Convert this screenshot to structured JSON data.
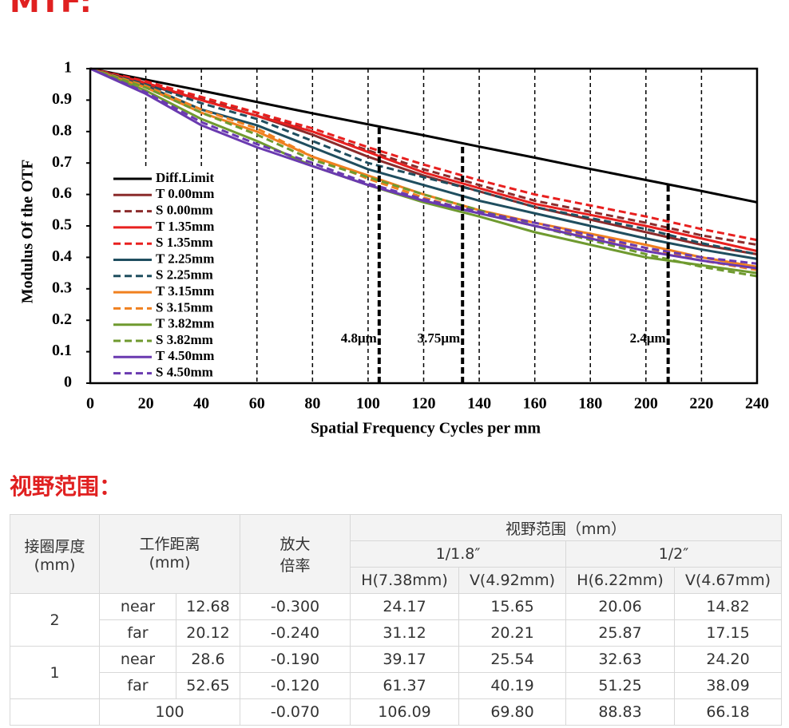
{
  "heading": "MTF:",
  "chart_data": {
    "type": "line",
    "x_label": "Spatial Frequency Cycles per mm",
    "y_label": "Modulus Of  the OTF",
    "x": [
      0,
      20,
      40,
      60,
      80,
      100,
      120,
      140,
      160,
      180,
      200,
      220,
      240
    ],
    "xlim": [
      0,
      240
    ],
    "ylim": [
      0,
      1
    ],
    "xticks": [
      0,
      20,
      40,
      60,
      80,
      100,
      120,
      140,
      160,
      180,
      200,
      220,
      240
    ],
    "yticks": [
      0,
      0.1,
      0.2,
      0.3,
      0.4,
      0.5,
      0.6,
      0.7,
      0.8,
      0.9,
      1
    ],
    "grid": "x",
    "legend": "left",
    "series": [
      {
        "name": "Diff.Limit",
        "color": "#000000",
        "dash": false,
        "values": [
          1,
          0.965,
          0.93,
          0.894,
          0.858,
          0.823,
          0.788,
          0.752,
          0.717,
          0.681,
          0.646,
          0.611,
          0.575
        ]
      },
      {
        "name": "T 0.00mm",
        "color": "#8b2b2b",
        "dash": false,
        "values": [
          1,
          0.95,
          0.9,
          0.85,
          0.79,
          0.72,
          0.66,
          0.61,
          0.56,
          0.52,
          0.48,
          0.44,
          0.41
        ]
      },
      {
        "name": "S 0.00mm",
        "color": "#8b2b2b",
        "dash": true,
        "values": [
          1,
          0.955,
          0.905,
          0.86,
          0.8,
          0.74,
          0.68,
          0.63,
          0.58,
          0.545,
          0.51,
          0.47,
          0.44
        ]
      },
      {
        "name": "T 1.35mm",
        "color": "#e8201f",
        "dash": false,
        "values": [
          1,
          0.955,
          0.9,
          0.85,
          0.8,
          0.735,
          0.67,
          0.62,
          0.57,
          0.535,
          0.5,
          0.46,
          0.42
        ]
      },
      {
        "name": "S 1.35mm",
        "color": "#e8201f",
        "dash": true,
        "values": [
          1,
          0.96,
          0.91,
          0.86,
          0.81,
          0.75,
          0.695,
          0.645,
          0.6,
          0.565,
          0.53,
          0.49,
          0.455
        ]
      },
      {
        "name": "T 2.25mm",
        "color": "#1f4e5f",
        "dash": false,
        "values": [
          1,
          0.945,
          0.87,
          0.82,
          0.75,
          0.68,
          0.63,
          0.58,
          0.54,
          0.5,
          0.46,
          0.425,
          0.395
        ]
      },
      {
        "name": "S 2.25mm",
        "color": "#1f4e5f",
        "dash": true,
        "values": [
          1,
          0.95,
          0.89,
          0.84,
          0.77,
          0.7,
          0.655,
          0.61,
          0.56,
          0.525,
          0.49,
          0.445,
          0.41
        ]
      },
      {
        "name": "T 3.15mm",
        "color": "#f0801f",
        "dash": false,
        "values": [
          1,
          0.94,
          0.86,
          0.8,
          0.72,
          0.66,
          0.6,
          0.55,
          0.51,
          0.475,
          0.44,
          0.4,
          0.37
        ]
      },
      {
        "name": "S 3.15mm",
        "color": "#f0801f",
        "dash": true,
        "values": [
          1,
          0.945,
          0.87,
          0.81,
          0.72,
          0.65,
          0.59,
          0.54,
          0.5,
          0.465,
          0.43,
          0.39,
          0.36
        ]
      },
      {
        "name": "T 3.82mm",
        "color": "#6f9a2f",
        "dash": false,
        "values": [
          1,
          0.93,
          0.84,
          0.77,
          0.69,
          0.63,
          0.575,
          0.53,
          0.48,
          0.44,
          0.4,
          0.375,
          0.35
        ]
      },
      {
        "name": "S 3.82mm",
        "color": "#6f9a2f",
        "dash": true,
        "values": [
          1,
          0.94,
          0.86,
          0.79,
          0.71,
          0.655,
          0.6,
          0.55,
          0.5,
          0.455,
          0.41,
          0.37,
          0.34
        ]
      },
      {
        "name": "T 4.50mm",
        "color": "#6a3ab0",
        "dash": false,
        "values": [
          1,
          0.92,
          0.82,
          0.75,
          0.69,
          0.63,
          0.58,
          0.54,
          0.5,
          0.46,
          0.42,
          0.39,
          0.365
        ]
      },
      {
        "name": "S 4.50mm",
        "color": "#6a3ab0",
        "dash": true,
        "values": [
          1,
          0.925,
          0.83,
          0.76,
          0.7,
          0.635,
          0.585,
          0.545,
          0.51,
          0.47,
          0.43,
          0.4,
          0.38
        ]
      }
    ],
    "markers": [
      {
        "x": 104,
        "label": "4.8μm"
      },
      {
        "x": 134,
        "label": "3.75μm"
      },
      {
        "x": 208,
        "label": "2.4μm"
      }
    ]
  },
  "section_title": "视野范围：",
  "table": {
    "header": {
      "ring": [
        "接圈厚度",
        "(mm)"
      ],
      "distance": [
        "工作距离",
        "(mm)"
      ],
      "magnification": [
        "放大",
        "倍率"
      ],
      "field": "视野范围（mm）",
      "sensors": [
        "1/1.8″",
        "1/2″"
      ],
      "columns": [
        "H(7.38mm)",
        "V(4.92mm)",
        "H(6.22mm)",
        "V(4.67mm)"
      ]
    },
    "groups": [
      {
        "ring": "2",
        "rows": [
          [
            "near",
            "12.68",
            "-0.300",
            "24.17",
            "15.65",
            "20.06",
            "14.82"
          ],
          [
            "far",
            "20.12",
            "-0.240",
            "31.12",
            "20.21",
            "25.87",
            "17.15"
          ]
        ]
      },
      {
        "ring": "1",
        "rows": [
          [
            "near",
            "28.6",
            "-0.190",
            "39.17",
            "25.54",
            "32.63",
            "24.20"
          ],
          [
            "far",
            "52.65",
            "-0.120",
            "61.37",
            "40.19",
            "51.25",
            "38.09"
          ]
        ]
      },
      {
        "rows": [
          [
            "100",
            "-0.070",
            "106.09",
            "69.80",
            "88.83",
            "66.18"
          ]
        ]
      }
    ]
  }
}
